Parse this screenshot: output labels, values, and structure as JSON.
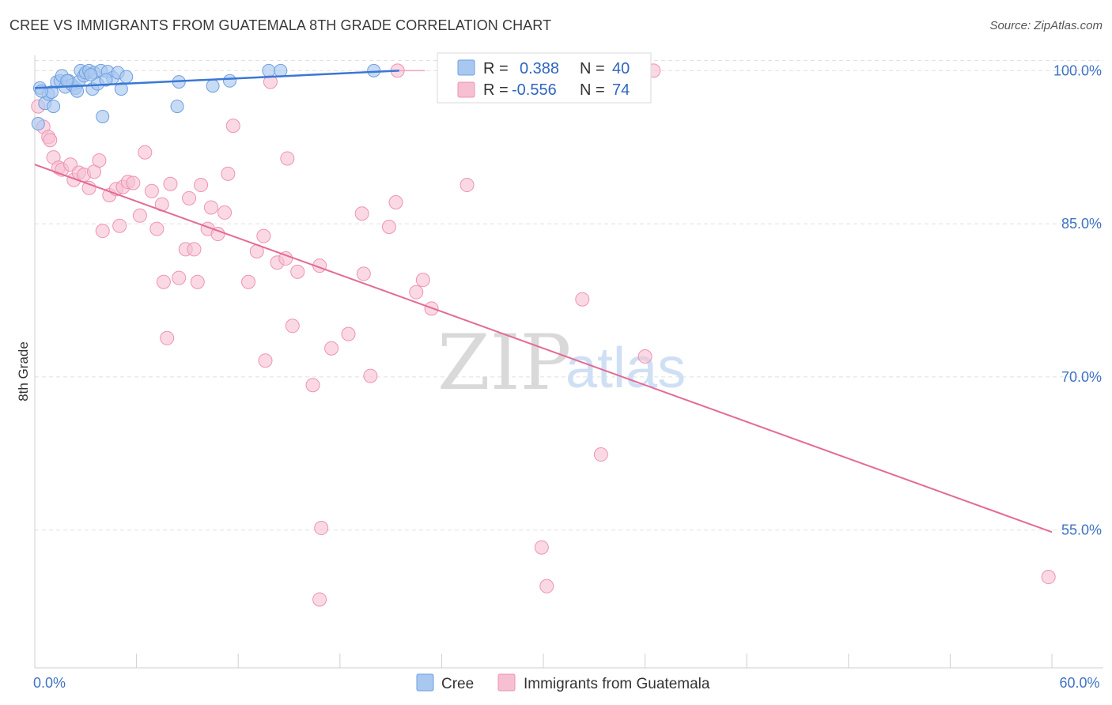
{
  "title": "CREE VS IMMIGRANTS FROM GUATEMALA 8TH GRADE CORRELATION CHART",
  "source": "Source: ZipAtlas.com",
  "watermark": {
    "zip": "ZIP",
    "atlas": "atlas"
  },
  "colors": {
    "blue_fill": "#a9c8f0",
    "blue_stroke": "#6f9fe0",
    "blue_line": "#3a78d4",
    "pink_fill": "#f6bfd2",
    "pink_stroke": "#ee93b3",
    "pink_line": "#e46a96",
    "tick_label": "#3f73c4",
    "grid": "#e1e1e1"
  },
  "legend": {
    "rows": [
      {
        "r_label": "R =",
        "r_value": "0.388",
        "n_label": "N =",
        "n_value": "40"
      },
      {
        "r_label": "R =",
        "r_value": "-0.556",
        "n_label": "N =",
        "n_value": "74"
      }
    ]
  },
  "bottom_legend": {
    "series1": "Cree",
    "series2": "Immigrants from Guatemala"
  },
  "chart_data": {
    "type": "scatter",
    "title": "CREE VS IMMIGRANTS FROM GUATEMALA 8TH GRADE CORRELATION CHART",
    "xlabel": "",
    "ylabel": "8th Grade",
    "xlim": [
      0,
      60
    ],
    "ylim": [
      41.5,
      101.5
    ],
    "x_tick_labels": [
      "0.0%",
      "60.0%"
    ],
    "x_tick_values": [
      0,
      60
    ],
    "y_tick_labels": [
      "100.0%",
      "85.0%",
      "70.0%",
      "55.0%"
    ],
    "y_tick_values": [
      100,
      85,
      70,
      55
    ],
    "series": [
      {
        "name": "Cree",
        "R": 0.388,
        "N": 40,
        "trend": {
          "x": [
            0,
            21.5
          ],
          "y": [
            98.3,
            100.0
          ]
        },
        "points": [
          [
            0.3,
            98.3
          ],
          [
            0.6,
            96.8
          ],
          [
            0.8,
            97.7
          ],
          [
            1.0,
            97.9
          ],
          [
            1.1,
            96.5
          ],
          [
            1.3,
            98.9
          ],
          [
            1.5,
            99.0
          ],
          [
            1.6,
            99.5
          ],
          [
            1.8,
            98.4
          ],
          [
            2.0,
            99.0
          ],
          [
            2.2,
            98.6
          ],
          [
            2.4,
            98.3
          ],
          [
            2.6,
            98.9
          ],
          [
            2.7,
            100.0
          ],
          [
            2.9,
            99.5
          ],
          [
            3.0,
            99.8
          ],
          [
            3.2,
            100.0
          ],
          [
            3.4,
            98.2
          ],
          [
            3.5,
            99.8
          ],
          [
            3.7,
            98.7
          ],
          [
            3.9,
            100.0
          ],
          [
            4.0,
            95.5
          ],
          [
            4.3,
            99.9
          ],
          [
            4.6,
            99.3
          ],
          [
            4.9,
            99.8
          ],
          [
            5.1,
            98.2
          ],
          [
            5.4,
            99.4
          ],
          [
            8.5,
            98.9
          ],
          [
            8.4,
            96.5
          ],
          [
            10.5,
            98.5
          ],
          [
            11.5,
            99.0
          ],
          [
            13.8,
            100.0
          ],
          [
            14.5,
            100.0
          ],
          [
            20.0,
            100.0
          ],
          [
            0.2,
            94.8
          ],
          [
            0.4,
            98.0
          ],
          [
            1.9,
            99.0
          ],
          [
            2.5,
            98.0
          ],
          [
            3.3,
            99.6
          ],
          [
            4.2,
            99.1
          ]
        ]
      },
      {
        "name": "Immigrants from Guatemala",
        "R": -0.556,
        "N": 74,
        "trend": {
          "x": [
            0,
            60
          ],
          "y": [
            90.8,
            54.8
          ]
        },
        "points": [
          [
            0.2,
            96.5
          ],
          [
            0.5,
            94.5
          ],
          [
            0.8,
            93.5
          ],
          [
            1.1,
            91.5
          ],
          [
            1.4,
            90.5
          ],
          [
            1.6,
            90.3
          ],
          [
            2.1,
            90.8
          ],
          [
            2.3,
            89.3
          ],
          [
            2.6,
            90.0
          ],
          [
            2.9,
            89.8
          ],
          [
            3.2,
            88.5
          ],
          [
            3.5,
            90.1
          ],
          [
            3.8,
            91.2
          ],
          [
            4.0,
            84.3
          ],
          [
            4.4,
            87.8
          ],
          [
            4.8,
            88.4
          ],
          [
            5.2,
            88.6
          ],
          [
            5.5,
            89.1
          ],
          [
            5.8,
            89.0
          ],
          [
            6.2,
            85.8
          ],
          [
            6.5,
            92.0
          ],
          [
            6.9,
            88.2
          ],
          [
            7.2,
            84.5
          ],
          [
            7.5,
            86.9
          ],
          [
            7.6,
            79.3
          ],
          [
            7.8,
            73.8
          ],
          [
            8.0,
            88.9
          ],
          [
            8.5,
            79.7
          ],
          [
            8.9,
            82.5
          ],
          [
            9.1,
            87.5
          ],
          [
            9.4,
            82.5
          ],
          [
            9.6,
            79.3
          ],
          [
            9.8,
            88.8
          ],
          [
            10.2,
            84.5
          ],
          [
            10.4,
            86.6
          ],
          [
            10.8,
            84.0
          ],
          [
            11.2,
            86.1
          ],
          [
            11.4,
            89.9
          ],
          [
            11.7,
            94.6
          ],
          [
            12.6,
            79.3
          ],
          [
            13.1,
            82.3
          ],
          [
            13.5,
            83.8
          ],
          [
            13.6,
            71.6
          ],
          [
            13.9,
            98.9
          ],
          [
            14.3,
            81.2
          ],
          [
            14.8,
            81.6
          ],
          [
            14.9,
            91.4
          ],
          [
            15.2,
            75.0
          ],
          [
            15.5,
            80.3
          ],
          [
            16.4,
            69.2
          ],
          [
            16.8,
            80.9
          ],
          [
            16.9,
            55.2
          ],
          [
            16.8,
            48.2
          ],
          [
            17.5,
            72.8
          ],
          [
            18.5,
            74.2
          ],
          [
            19.3,
            86.0
          ],
          [
            19.4,
            80.1
          ],
          [
            19.8,
            70.1
          ],
          [
            20.9,
            84.7
          ],
          [
            21.3,
            87.1
          ],
          [
            21.4,
            100.0
          ],
          [
            22.5,
            78.3
          ],
          [
            23.4,
            76.7
          ],
          [
            22.9,
            79.5
          ],
          [
            25.5,
            88.8
          ],
          [
            29.9,
            53.3
          ],
          [
            30.2,
            49.5
          ],
          [
            32.3,
            77.6
          ],
          [
            33.4,
            62.4
          ],
          [
            36.0,
            72.0
          ],
          [
            36.5,
            100.0
          ],
          [
            59.8,
            50.4
          ],
          [
            0.9,
            93.2
          ],
          [
            5.0,
            84.8
          ]
        ]
      }
    ]
  }
}
